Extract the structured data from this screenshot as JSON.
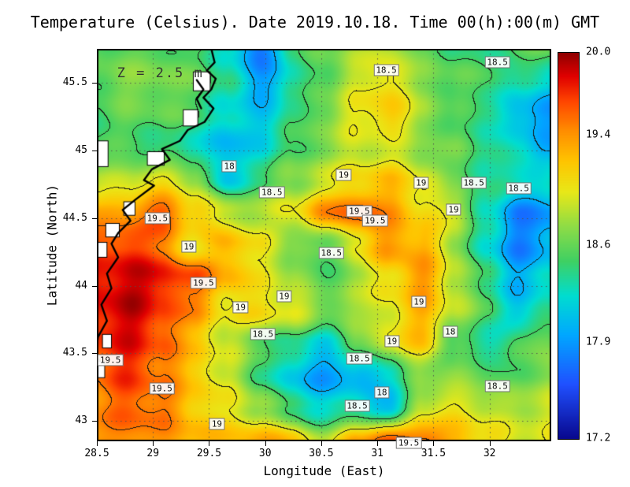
{
  "title": "Temperature (Celsius). Date 2019.10.18. Time 00(h):00(m) GMT",
  "annotation": {
    "text": "Z = 2.5 m",
    "lon": 28.68,
    "lat": 45.57
  },
  "axes": {
    "x": {
      "label": "Longitude (East)",
      "range": [
        28.5,
        32.55
      ],
      "ticks": [
        28.5,
        29,
        29.5,
        30,
        30.5,
        31,
        31.5,
        32
      ],
      "tick_labels": [
        "28.5",
        "29",
        "29.5",
        "30",
        "30.5",
        "31",
        "31.5",
        "32"
      ]
    },
    "y": {
      "label": "Latitude (North)",
      "range": [
        42.85,
        45.75
      ],
      "ticks": [
        43,
        43.5,
        44,
        44.5,
        45,
        45.5
      ],
      "tick_labels": [
        "43",
        "43.5",
        "44",
        "44.5",
        "45",
        "45.5"
      ]
    }
  },
  "colorbar": {
    "min": 17.2,
    "max": 20.0,
    "tick_values": [
      20.0,
      19.4,
      18.6,
      17.9,
      17.2
    ],
    "tick_labels": [
      "20.0",
      "19.4",
      "18.6",
      "17.9",
      "17.2"
    ],
    "stops": [
      [
        0.0,
        "#08088e"
      ],
      [
        0.14,
        "#2050ff"
      ],
      [
        0.27,
        "#00a8ff"
      ],
      [
        0.37,
        "#00ddd0"
      ],
      [
        0.46,
        "#3fd063"
      ],
      [
        0.55,
        "#8fdc46"
      ],
      [
        0.64,
        "#e8e818"
      ],
      [
        0.72,
        "#ffc400"
      ],
      [
        0.8,
        "#ff8c00"
      ],
      [
        0.875,
        "#ff4500"
      ],
      [
        0.94,
        "#e00000"
      ],
      [
        1.0,
        "#900000"
      ]
    ]
  },
  "chart_data": {
    "type": "heatmap",
    "variable": "Temperature",
    "units": "Celsius",
    "date": "2019.10.18",
    "time": "00(h):00(m) GMT",
    "depth_label": "Z = 2.5 m",
    "contour_levels": [
      17.5,
      18,
      18.5,
      19,
      19.5
    ],
    "grid": {
      "lon": [
        28.5,
        28.79,
        29.08,
        29.37,
        29.66,
        29.95,
        30.24,
        30.53,
        30.82,
        31.11,
        31.4,
        31.69,
        31.98,
        32.27,
        32.55
      ],
      "lat": [
        45.75,
        45.51,
        45.27,
        45.02,
        44.78,
        44.54,
        44.3,
        44.06,
        43.82,
        43.58,
        43.34,
        43.1,
        42.85
      ],
      "values": [
        [
          18.6,
          18.6,
          18.6,
          18.5,
          18.3,
          17.7,
          18.4,
          18.6,
          18.8,
          18.9,
          18.6,
          18.5,
          18.4,
          18.6,
          18.6
        ],
        [
          18.6,
          18.7,
          18.7,
          18.6,
          18.4,
          17.9,
          18.3,
          18.6,
          18.9,
          19.1,
          18.7,
          18.6,
          18.5,
          18.3,
          18.2
        ],
        [
          18.5,
          18.6,
          18.6,
          18.5,
          18.2,
          18.1,
          18.4,
          18.7,
          19.0,
          19.2,
          18.8,
          18.5,
          18.4,
          18.0,
          17.9
        ],
        [
          18.5,
          18.5,
          18.4,
          18.3,
          18.0,
          18.2,
          18.5,
          18.7,
          18.9,
          18.9,
          18.7,
          18.6,
          18.4,
          18.2,
          18.0
        ],
        [
          18.8,
          18.9,
          19.0,
          18.8,
          18.1,
          18.5,
          18.7,
          18.9,
          19.1,
          19.2,
          19.0,
          18.6,
          18.4,
          18.3,
          18.3
        ],
        [
          19.3,
          19.4,
          19.6,
          19.2,
          18.9,
          18.8,
          19.0,
          19.4,
          19.6,
          19.4,
          19.1,
          18.9,
          18.3,
          17.8,
          17.9
        ],
        [
          19.6,
          19.7,
          19.5,
          19.0,
          19.3,
          19.0,
          18.7,
          18.5,
          19.0,
          19.4,
          19.3,
          18.8,
          18.2,
          17.8,
          18.0
        ],
        [
          19.8,
          19.9,
          19.8,
          19.6,
          19.3,
          19.0,
          18.8,
          18.5,
          18.8,
          19.1,
          19.4,
          18.9,
          18.4,
          18.0,
          18.2
        ],
        [
          19.8,
          19.9,
          19.7,
          19.4,
          19.0,
          19.1,
          19.0,
          18.7,
          18.8,
          19.0,
          19.3,
          18.9,
          18.5,
          18.1,
          18.4
        ],
        [
          19.7,
          19.8,
          19.6,
          19.2,
          18.9,
          18.6,
          18.4,
          18.2,
          18.6,
          19.0,
          19.2,
          18.5,
          18.3,
          18.5,
          18.7
        ],
        [
          19.5,
          19.7,
          19.5,
          19.2,
          18.9,
          18.5,
          18.1,
          17.9,
          18.0,
          18.2,
          18.7,
          18.7,
          18.6,
          18.5,
          18.8
        ],
        [
          19.4,
          19.6,
          19.5,
          19.2,
          19.0,
          18.8,
          18.4,
          18.2,
          18.3,
          18.0,
          18.9,
          19.0,
          18.9,
          18.8,
          19.0
        ],
        [
          19.4,
          19.5,
          19.4,
          19.3,
          19.2,
          19.3,
          19.2,
          18.8,
          19.4,
          19.6,
          19.6,
          19.3,
          19.1,
          18.9,
          19.0
        ]
      ]
    },
    "contour_labels": [
      {
        "text": "18.5",
        "lon": 31.08,
        "lat": 45.59
      },
      {
        "text": "18.5",
        "lon": 32.07,
        "lat": 45.65
      },
      {
        "text": "18",
        "lon": 29.68,
        "lat": 44.88
      },
      {
        "text": "18.5",
        "lon": 30.06,
        "lat": 44.69
      },
      {
        "text": "19",
        "lon": 30.7,
        "lat": 44.82
      },
      {
        "text": "19",
        "lon": 31.39,
        "lat": 44.76
      },
      {
        "text": "18.5",
        "lon": 31.86,
        "lat": 44.76
      },
      {
        "text": "18.5",
        "lon": 32.26,
        "lat": 44.72
      },
      {
        "text": "19.5",
        "lon": 30.84,
        "lat": 44.55
      },
      {
        "text": "19.5",
        "lon": 30.98,
        "lat": 44.48
      },
      {
        "text": "19",
        "lon": 31.68,
        "lat": 44.56
      },
      {
        "text": "19.5",
        "lon": 29.04,
        "lat": 44.5
      },
      {
        "text": "19",
        "lon": 29.32,
        "lat": 44.29
      },
      {
        "text": "18.5",
        "lon": 30.59,
        "lat": 44.24
      },
      {
        "text": "19.5",
        "lon": 29.45,
        "lat": 44.02
      },
      {
        "text": "19",
        "lon": 29.78,
        "lat": 43.84
      },
      {
        "text": "19",
        "lon": 30.17,
        "lat": 43.92
      },
      {
        "text": "19",
        "lon": 31.37,
        "lat": 43.88
      },
      {
        "text": "18.5",
        "lon": 29.98,
        "lat": 43.64
      },
      {
        "text": "18",
        "lon": 31.65,
        "lat": 43.66
      },
      {
        "text": "19",
        "lon": 31.13,
        "lat": 43.59
      },
      {
        "text": "19.5",
        "lon": 28.62,
        "lat": 43.45
      },
      {
        "text": "18.5",
        "lon": 30.84,
        "lat": 43.46
      },
      {
        "text": "19.5",
        "lon": 29.08,
        "lat": 43.24
      },
      {
        "text": "18",
        "lon": 31.04,
        "lat": 43.21
      },
      {
        "text": "18.5",
        "lon": 30.82,
        "lat": 43.11
      },
      {
        "text": "18.5",
        "lon": 32.07,
        "lat": 43.26
      },
      {
        "text": "19",
        "lon": 29.57,
        "lat": 42.98
      },
      {
        "text": "19.5",
        "lon": 31.28,
        "lat": 42.84
      }
    ],
    "coastlines": [
      [
        [
          29.52,
          45.75
        ],
        [
          29.55,
          45.65
        ],
        [
          29.48,
          45.59
        ],
        [
          29.56,
          45.53
        ],
        [
          29.52,
          45.45
        ],
        [
          29.45,
          45.39
        ],
        [
          29.54,
          45.31
        ],
        [
          29.46,
          45.21
        ],
        [
          29.31,
          45.15
        ],
        [
          29.24,
          45.07
        ],
        [
          29.08,
          45.01
        ],
        [
          29.15,
          44.93
        ],
        [
          28.99,
          44.86
        ],
        [
          28.92,
          44.78
        ],
        [
          29.01,
          44.74
        ],
        [
          28.85,
          44.64
        ],
        [
          28.73,
          44.56
        ],
        [
          28.8,
          44.48
        ],
        [
          28.69,
          44.39
        ],
        [
          28.63,
          44.31
        ],
        [
          28.69,
          44.21
        ],
        [
          28.59,
          44.09
        ],
        [
          28.63,
          43.98
        ],
        [
          28.54,
          43.86
        ],
        [
          28.59,
          43.74
        ],
        [
          28.51,
          43.62
        ],
        [
          28.5,
          43.56
        ]
      ],
      [
        [
          29.39,
          45.52
        ],
        [
          29.45,
          45.45
        ],
        [
          29.39,
          45.38
        ],
        [
          29.43,
          45.31
        ]
      ]
    ],
    "land_patches": [
      {
        "lon": 29.36,
        "lat": 45.58,
        "w": 0.15,
        "h": 0.14
      },
      {
        "lon": 29.27,
        "lat": 45.3,
        "w": 0.13,
        "h": 0.12
      },
      {
        "lon": 28.95,
        "lat": 44.99,
        "w": 0.15,
        "h": 0.1
      },
      {
        "lon": 28.5,
        "lat": 45.07,
        "w": 0.1,
        "h": 0.19
      },
      {
        "lon": 28.74,
        "lat": 44.62,
        "w": 0.1,
        "h": 0.1
      },
      {
        "lon": 28.58,
        "lat": 44.46,
        "w": 0.12,
        "h": 0.1
      },
      {
        "lon": 28.5,
        "lat": 44.32,
        "w": 0.09,
        "h": 0.11
      },
      {
        "lon": 28.55,
        "lat": 43.64,
        "w": 0.08,
        "h": 0.1
      },
      {
        "lon": 28.5,
        "lat": 43.44,
        "w": 0.07,
        "h": 0.12
      }
    ]
  }
}
